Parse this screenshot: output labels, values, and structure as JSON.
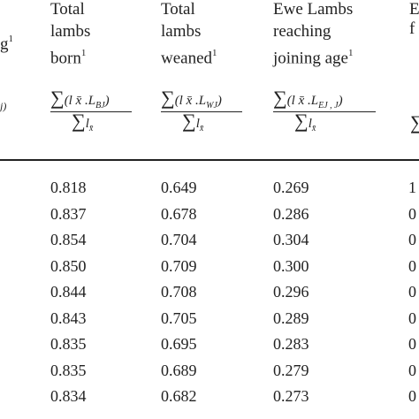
{
  "columns": [
    {
      "lines": [
        "Total",
        "lambs",
        "born"
      ],
      "sup": "1",
      "formula_sub": "BJ"
    },
    {
      "lines": [
        "Total",
        "lambs",
        "weaned"
      ],
      "sup": "1",
      "formula_sub": "WJ"
    },
    {
      "lines": [
        "Ewe Lambs",
        "reaching",
        "joining age"
      ],
      "sup": "1",
      "formula_sub": "EJ , J"
    }
  ],
  "partial_left": {
    "header_fragment": "g",
    "sup": "1",
    "formula_fragment": "j)"
  },
  "partial_right": {
    "header_fragments": [
      "E",
      "f"
    ],
    "formula_fragment": "∑"
  },
  "rows": [
    [
      "0.818",
      "0.649",
      "0.269",
      "1"
    ],
    [
      "0.837",
      "0.678",
      "0.286",
      "0"
    ],
    [
      "0.854",
      "0.704",
      "0.304",
      "0"
    ],
    [
      "0.850",
      "0.709",
      "0.300",
      "0"
    ],
    [
      "0.844",
      "0.708",
      "0.296",
      "0"
    ],
    [
      "0.843",
      "0.705",
      "0.289",
      "0"
    ],
    [
      "0.835",
      "0.695",
      "0.283",
      "0"
    ],
    [
      "0.835",
      "0.689",
      "0.279",
      "0"
    ],
    [
      "0.834",
      "0.682",
      "0.273",
      "0"
    ]
  ]
}
